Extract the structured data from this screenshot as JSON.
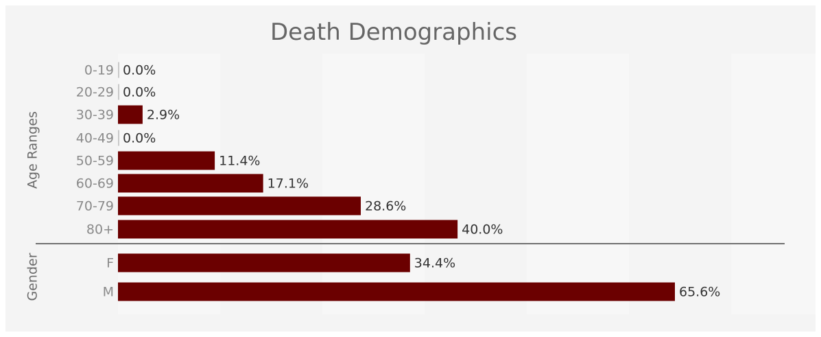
{
  "chart_data": {
    "type": "bar",
    "orientation": "horizontal",
    "title": "Death Demographics",
    "value_unit": "%",
    "groups": [
      {
        "name": "Age Ranges",
        "categories": [
          "0-19",
          "20-29",
          "30-39",
          "40-49",
          "50-59",
          "60-69",
          "70-79",
          "80+"
        ],
        "values": [
          0.0,
          0.0,
          2.9,
          0.0,
          11.4,
          17.1,
          28.6,
          40.0
        ],
        "labels": [
          "0.0%",
          "0.0%",
          "2.9%",
          "0.0%",
          "11.4%",
          "17.1%",
          "28.6%",
          "40.0%"
        ]
      },
      {
        "name": "Gender",
        "categories": [
          "F",
          "M"
        ],
        "values": [
          34.4,
          65.6
        ],
        "labels": [
          "34.4%",
          "65.6%"
        ]
      }
    ],
    "xlim": [
      0,
      70
    ],
    "grid": "vertical-bands",
    "bar_color": "#6b0000"
  }
}
